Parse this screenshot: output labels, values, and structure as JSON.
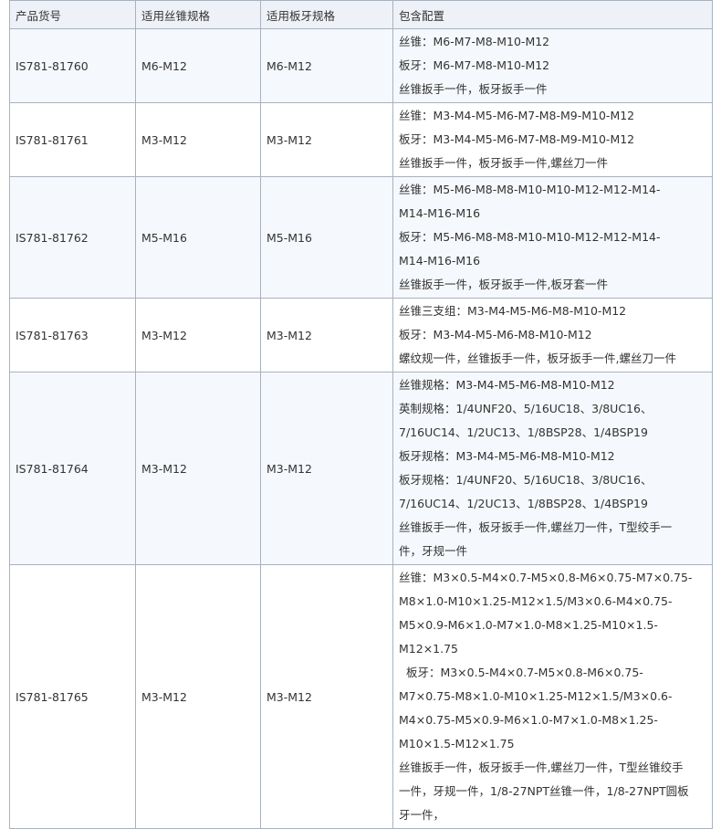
{
  "table": {
    "header": [
      "产品货号",
      "适用丝锥规格",
      "适用板牙规格",
      "包含配置"
    ],
    "rows": [
      [
        "IS781-81760",
        "M6-M12",
        "M6-M12",
        [
          "丝锥：M6-M7-M8-M10-M12",
          "板牙：M6-M7-M8-M10-M12",
          "丝锥扳手一件，板牙扳手一件"
        ]
      ],
      [
        "IS781-81761",
        "M3-M12",
        "M3-M12",
        [
          "丝锥：M3-M4-M5-M6-M7-M8-M9-M10-M12",
          "板牙：M3-M4-M5-M6-M7-M8-M9-M10-M12",
          "丝锥扳手一件，板牙扳手一件,螺丝刀一件"
        ]
      ],
      [
        "IS781-81762",
        "M5-M16",
        "M5-M16",
        [
          "丝锥：M5-M6-M8-M8-M10-M10-M12-M12-M14-",
          "M14-M16-M16",
          "板牙：M5-M6-M8-M8-M10-M10-M12-M12-M14-",
          "M14-M16-M16",
          "丝锥扳手一件，板牙扳手一件,板牙套一件"
        ]
      ],
      [
        "IS781-81763",
        "M3-M12",
        "M3-M12",
        [
          "丝锥三支组：M3-M4-M5-M6-M8-M10-M12",
          "板牙：M3-M4-M5-M6-M8-M10-M12",
          "螺纹规一件，丝锥扳手一件，板牙扳手一件,螺丝刀一件"
        ]
      ],
      [
        "IS781-81764",
        "M3-M12",
        "M3-M12",
        [
          "丝锥规格：M3-M4-M5-M6-M8-M10-M12",
          "英制规格：1/4UNF20、5/16UC18、3/8UC16、",
          "7/16UC14、1/2UC13、1/8BSP28、1/4BSP19",
          "板牙规格：M3-M4-M5-M6-M8-M10-M12",
          "板牙规格：1/4UNF20、5/16UC18、3/8UC16、",
          "7/16UC14、1/2UC13、1/8BSP28、1/4BSP19",
          "丝锥扳手一件，板牙扳手一件,螺丝刀一件，T型绞手一",
          "件，牙规一件"
        ]
      ],
      [
        "IS781-81765",
        "M3-M12",
        "M3-M12",
        [
          "丝锥：M3×0.5-M4×0.7-M5×0.8-M6×0.75-M7×0.75-",
          "M8×1.0-M10×1.25-M12×1.5/M3×0.6-M4×0.75-",
          "M5×0.9-M6×1.0-M7×1.0-M8×1.25-M10×1.5-",
          "M12×1.75",
          "  板牙：M3×0.5-M4×0.7-M5×0.8-M6×0.75-",
          "M7×0.75-M8×1.0-M10×1.25-M12×1.5/M3×0.6-",
          "M4×0.75-M5×0.9-M6×1.0-M7×1.0-M8×1.25-",
          "M10×1.5-M12×1.75",
          "丝锥扳手一件，板牙扳手一件,螺丝刀一件，T型丝锥绞手",
          "一件，牙规一件，1/8-27NPT丝锥一件，1/8-27NPT圆板",
          "牙一件，"
        ]
      ]
    ]
  }
}
